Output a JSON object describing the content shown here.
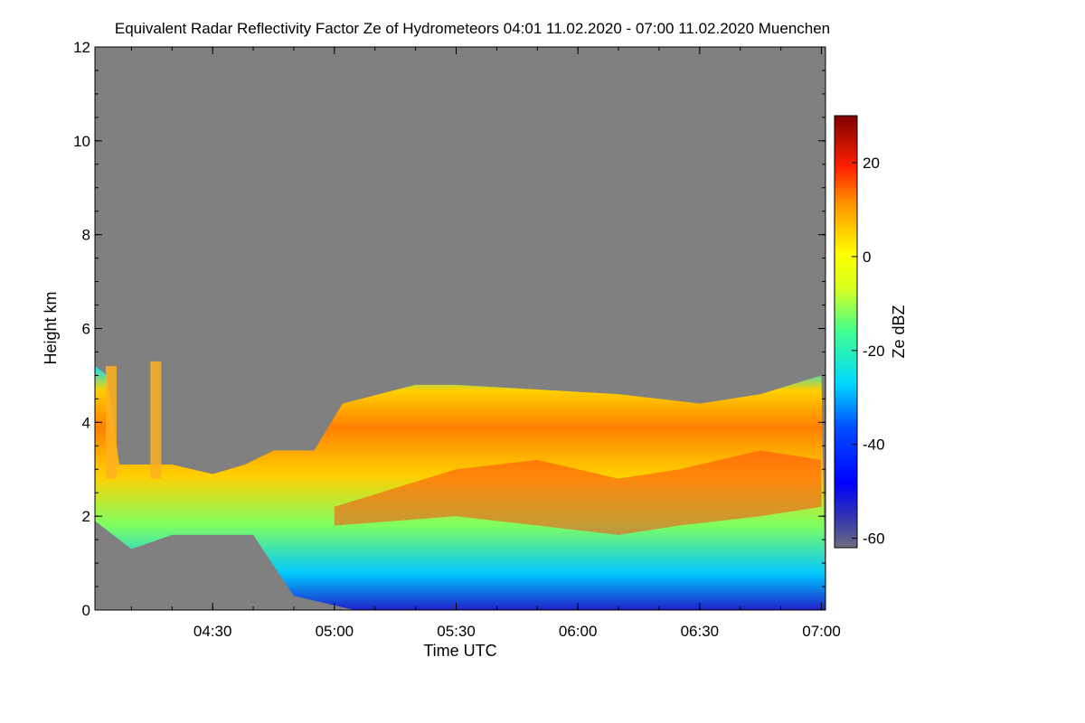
{
  "chart_data": {
    "type": "heatmap",
    "title": "Equivalent Radar Reflectivity Factor Ze of Hydrometeors   04:01 11.02.2020 - 07:00 11.02.2020 Muenchen",
    "xlabel": "Time UTC",
    "ylabel": "Height km",
    "x_range": [
      "04:01",
      "07:01"
    ],
    "x_ticks": [
      "04:30",
      "05:00",
      "05:30",
      "06:00",
      "06:30",
      "07:00"
    ],
    "y_range": [
      0,
      12
    ],
    "y_ticks": [
      0,
      2,
      4,
      6,
      8,
      10,
      12
    ],
    "colorbar": {
      "label": "Ze dBZ",
      "range": [
        -62,
        30
      ],
      "ticks": [
        -60,
        -40,
        -20,
        0,
        20
      ],
      "colormap": "jet",
      "no_data_color": "#808080"
    },
    "echo_summary": {
      "cloud_top_km": [
        {
          "time": "04:01",
          "height": 5.2
        },
        {
          "time": "04:04",
          "height": 5.0
        },
        {
          "time": "04:07",
          "height": 3.1
        },
        {
          "time": "04:20",
          "height": 3.1
        },
        {
          "time": "04:30",
          "height": 2.9
        },
        {
          "time": "04:38",
          "height": 3.1
        },
        {
          "time": "04:45",
          "height": 3.4
        },
        {
          "time": "04:55",
          "height": 3.4
        },
        {
          "time": "05:02",
          "height": 4.4
        },
        {
          "time": "05:20",
          "height": 4.8
        },
        {
          "time": "05:30",
          "height": 4.8
        },
        {
          "time": "05:50",
          "height": 4.7
        },
        {
          "time": "06:10",
          "height": 4.6
        },
        {
          "time": "06:30",
          "height": 4.4
        },
        {
          "time": "06:45",
          "height": 4.6
        },
        {
          "time": "07:00",
          "height": 5.0
        }
      ],
      "isolated_cells_km": [
        {
          "time": "04:16",
          "height_max": 5.3
        },
        {
          "time": "04:05",
          "height_max": 5.2
        }
      ],
      "max_ze_dbz_approx": 20
    }
  }
}
